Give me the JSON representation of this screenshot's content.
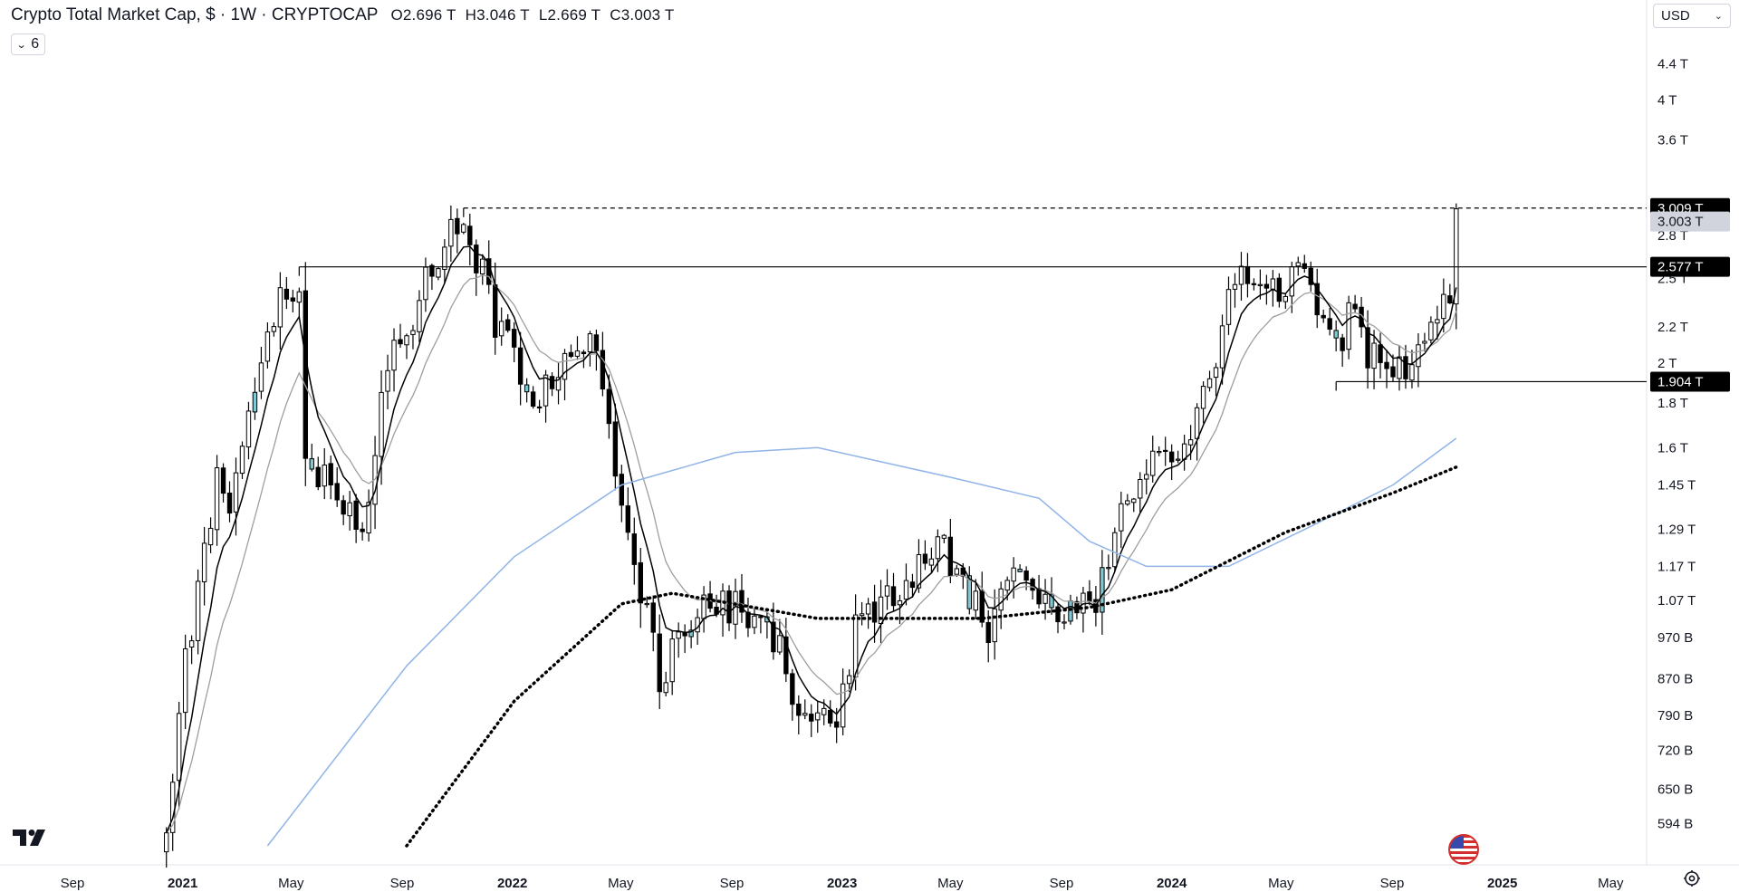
{
  "header": {
    "title": "Crypto Total Market Cap, $ · 1W · CRYPTOCAP",
    "open": "O2.696 T",
    "high": "H3.046 T",
    "low": "L2.669 T",
    "close": "C3.003 T"
  },
  "indicators_toggle": {
    "count": "6"
  },
  "currency_select": {
    "value": "USD"
  },
  "colors": {
    "up_candle": "#000000",
    "down_candle": "#000000",
    "highlight_candle": "#7fc8d4",
    "ma_fast": "#000000",
    "ma_slow": "#9e9e9e",
    "ma_blue": "#90b4e8",
    "ma_dotted": "#000000",
    "price_tag_bg": "#000000",
    "last_price_tag_bg": "#d1d4dc"
  },
  "chart_data": {
    "type": "candlestick",
    "symbol": "CRYPTOCAP:TOTAL",
    "interval": "1W",
    "scale": "log",
    "ylim": [
      560000000000,
      4600000000000
    ],
    "y_ticks": [
      {
        "label": "4.4 T",
        "value": 4400000000000.0
      },
      {
        "label": "4 T",
        "value": 4000000000000.0
      },
      {
        "label": "3.6 T",
        "value": 3600000000000.0
      },
      {
        "label": "2.8 T",
        "value": 2800000000000.0
      },
      {
        "label": "2.5 T",
        "value": 2500000000000.0
      },
      {
        "label": "2.2 T",
        "value": 2200000000000.0
      },
      {
        "label": "2 T",
        "value": 2000000000000.0
      },
      {
        "label": "1.8 T",
        "value": 1800000000000.0
      },
      {
        "label": "1.6 T",
        "value": 1600000000000.0
      },
      {
        "label": "1.45 T",
        "value": 1450000000000.0
      },
      {
        "label": "1.29 T",
        "value": 1290000000000.0
      },
      {
        "label": "1.17 T",
        "value": 1170000000000.0
      },
      {
        "label": "1.07 T",
        "value": 1070000000000.0
      },
      {
        "label": "970 B",
        "value": 970000000000.0
      },
      {
        "label": "870 B",
        "value": 870000000000.0
      },
      {
        "label": "790 B",
        "value": 790000000000.0
      },
      {
        "label": "720 B",
        "value": 720000000000.0
      },
      {
        "label": "650 B",
        "value": 650000000000.0
      },
      {
        "label": "594 B",
        "value": 594000000000.0
      }
    ],
    "x_ticks": [
      {
        "label": "Sep",
        "date": "2020-09-01",
        "bold": false
      },
      {
        "label": "2021",
        "date": "2021-01-01",
        "bold": true
      },
      {
        "label": "May",
        "date": "2021-05-01",
        "bold": false
      },
      {
        "label": "Sep",
        "date": "2021-09-01",
        "bold": false
      },
      {
        "label": "2022",
        "date": "2022-01-01",
        "bold": true
      },
      {
        "label": "May",
        "date": "2022-05-01",
        "bold": false
      },
      {
        "label": "Sep",
        "date": "2022-09-01",
        "bold": false
      },
      {
        "label": "2023",
        "date": "2023-01-01",
        "bold": true
      },
      {
        "label": "May",
        "date": "2023-05-01",
        "bold": false
      },
      {
        "label": "Sep",
        "date": "2023-09-01",
        "bold": false
      },
      {
        "label": "2024",
        "date": "2024-01-01",
        "bold": true
      },
      {
        "label": "May",
        "date": "2024-05-01",
        "bold": false
      },
      {
        "label": "Sep",
        "date": "2024-09-01",
        "bold": false
      },
      {
        "label": "2025",
        "date": "2025-01-01",
        "bold": true
      },
      {
        "label": "May",
        "date": "2025-05-01",
        "bold": false
      }
    ],
    "price_levels": [
      {
        "label": "3.009 T",
        "value": 3009000000000.0,
        "style": "dashed",
        "from_date": "2021-11-08"
      },
      {
        "label": "2.577 T",
        "value": 2577000000000.0,
        "style": "solid",
        "from_date": "2021-05-10"
      },
      {
        "label": "1.904 T",
        "value": 1904000000000.0,
        "style": "solid",
        "from_date": "2024-07-01"
      }
    ],
    "last_price": {
      "label": "3.003 T",
      "value": 3003000000000.0
    },
    "close_anchors": [
      [
        "2020-12-14",
        560000000000.0
      ],
      [
        "2021-01-04",
        900000000000.0
      ],
      [
        "2021-02-08",
        1450000000000.0
      ],
      [
        "2021-02-22",
        1400000000000.0
      ],
      [
        "2021-04-12",
        2300000000000.0
      ],
      [
        "2021-05-10",
        2450000000000.0
      ],
      [
        "2021-05-17",
        1550000000000.0
      ],
      [
        "2021-06-21",
        1400000000000.0
      ],
      [
        "2021-07-19",
        1300000000000.0
      ],
      [
        "2021-08-16",
        2000000000000.0
      ],
      [
        "2021-09-06",
        2200000000000.0
      ],
      [
        "2021-10-18",
        2750000000000.0
      ],
      [
        "2021-11-08",
        2950000000000.0
      ],
      [
        "2021-12-13",
        2250000000000.0
      ],
      [
        "2022-01-24",
        1800000000000.0
      ],
      [
        "2022-03-28",
        2150000000000.0
      ],
      [
        "2022-05-09",
        1300000000000.0
      ],
      [
        "2022-06-13",
        880000000000.0
      ],
      [
        "2022-08-15",
        1080000000000.0
      ],
      [
        "2022-10-24",
        960000000000.0
      ],
      [
        "2022-11-14",
        790000000000.0
      ],
      [
        "2022-12-26",
        780000000000.0
      ],
      [
        "2023-01-16",
        990000000000.0
      ],
      [
        "2023-03-20",
        1130000000000.0
      ],
      [
        "2023-04-17",
        1250000000000.0
      ],
      [
        "2023-06-12",
        1000000000000.0
      ],
      [
        "2023-07-10",
        1200000000000.0
      ],
      [
        "2023-09-04",
        1020000000000.0
      ],
      [
        "2023-10-09",
        1050000000000.0
      ],
      [
        "2023-11-06",
        1400000000000.0
      ],
      [
        "2024-01-15",
        1650000000000.0
      ],
      [
        "2024-02-12",
        1900000000000.0
      ],
      [
        "2024-03-11",
        2550000000000.0
      ],
      [
        "2024-04-15",
        2350000000000.0
      ],
      [
        "2024-05-20",
        2520000000000.0
      ],
      [
        "2024-06-24",
        2200000000000.0
      ],
      [
        "2024-07-01",
        2050000000000.0
      ],
      [
        "2024-07-22",
        2400000000000.0
      ],
      [
        "2024-08-05",
        2050000000000.0
      ],
      [
        "2024-09-09",
        1950000000000.0
      ],
      [
        "2024-10-14",
        2250000000000.0
      ],
      [
        "2024-11-04",
        2400000000000.0
      ],
      [
        "2024-11-11",
        3003000000000.0
      ]
    ],
    "ma_blue_anchors": [
      [
        "2021-04-05",
        560000000000.0
      ],
      [
        "2021-09-06",
        900000000000.0
      ],
      [
        "2022-01-03",
        1200000000000.0
      ],
      [
        "2022-05-02",
        1450000000000.0
      ],
      [
        "2022-09-05",
        1580000000000.0
      ],
      [
        "2022-12-05",
        1600000000000.0
      ],
      [
        "2023-05-01",
        1480000000000.0
      ],
      [
        "2023-08-07",
        1400000000000.0
      ],
      [
        "2023-10-02",
        1250000000000.0
      ],
      [
        "2023-12-04",
        1170000000000.0
      ],
      [
        "2024-03-04",
        1170000000000.0
      ],
      [
        "2024-06-03",
        1300000000000.0
      ],
      [
        "2024-09-02",
        1450000000000.0
      ],
      [
        "2024-11-11",
        1640000000000.0
      ]
    ],
    "ma_dotted_anchors": [
      [
        "2021-09-06",
        560000000000.0
      ],
      [
        "2022-01-03",
        820000000000.0
      ],
      [
        "2022-05-02",
        1060000000000.0
      ],
      [
        "2022-06-27",
        1090000000000.0
      ],
      [
        "2022-12-05",
        1020000000000.0
      ],
      [
        "2023-06-05",
        1020000000000.0
      ],
      [
        "2023-10-02",
        1050000000000.0
      ],
      [
        "2024-01-01",
        1100000000000.0
      ],
      [
        "2024-05-06",
        1280000000000.0
      ],
      [
        "2024-09-02",
        1420000000000.0
      ],
      [
        "2024-11-11",
        1520000000000.0
      ]
    ]
  }
}
